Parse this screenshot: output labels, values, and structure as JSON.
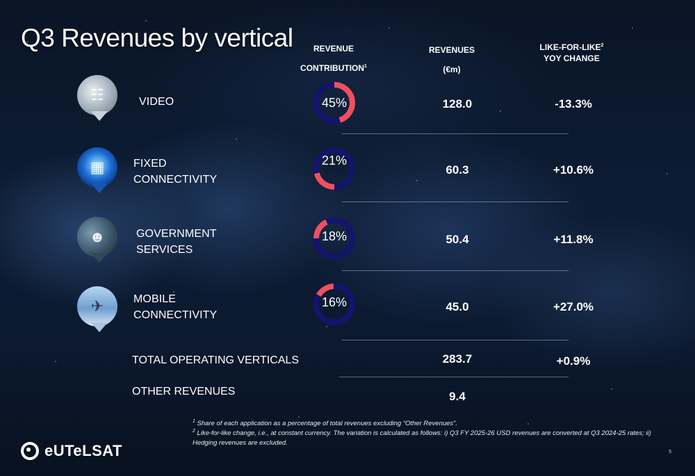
{
  "title": "Q3 Revenues by vertical",
  "headers": {
    "revenue_contribution": "REVENUE",
    "revenue_contribution_2": "CONTRIBUTION",
    "revenue_contribution_sup": "1",
    "revenues": "REVENUES",
    "revenues_unit": "(€m)",
    "lfl": "LIKE-FOR-LIKE",
    "lfl_sup": "2",
    "lfl_2": "YOY CHANGE"
  },
  "verticals": [
    {
      "line1": "VIDEO",
      "line2": "",
      "share": 45,
      "share_label": "45%",
      "revenue": "128.0",
      "change": "-13.3%",
      "icon": "home-cinema-icon"
    },
    {
      "line1": "FIXED",
      "line2": "CONNECTIVITY",
      "share": 21,
      "share_label": "21%",
      "revenue": "60.3",
      "change": "+10.6%",
      "icon": "circuit-chip-icon"
    },
    {
      "line1": "GOVERNMENT",
      "line2": "SERVICES",
      "share": 18,
      "share_label": "18%",
      "revenue": "50.4",
      "change": "+11.8%",
      "icon": "soldier-operator-icon"
    },
    {
      "line1": "MOBILE",
      "line2": "CONNECTIVITY",
      "share": 16,
      "share_label": "16%",
      "revenue": "45.0",
      "change": "+27.0%",
      "icon": "airplane-icon"
    }
  ],
  "total": {
    "label": "TOTAL OPERATING VERTICALS",
    "revenue": "283.7",
    "change": "+0.9%"
  },
  "other": {
    "label": "OTHER REVENUES",
    "revenue": "9.4"
  },
  "footnotes": {
    "f1_sup": "1",
    "f1": " Share of each application as a percentage of total revenues excluding “Other Revenues”.",
    "f2_sup": "2",
    "f2": " Like-for-like change, i.e., at constant currency. The variation is calculated as follows: i) Q3 FY 2025-26 USD revenues are converted at Q3 2024-25 rates; ii) Hedging revenues are excluded."
  },
  "logo": "eUTeLSAT",
  "page_number": "5",
  "colors": {
    "donut_share": "#f0505e",
    "donut_rest": "#14136e"
  }
}
